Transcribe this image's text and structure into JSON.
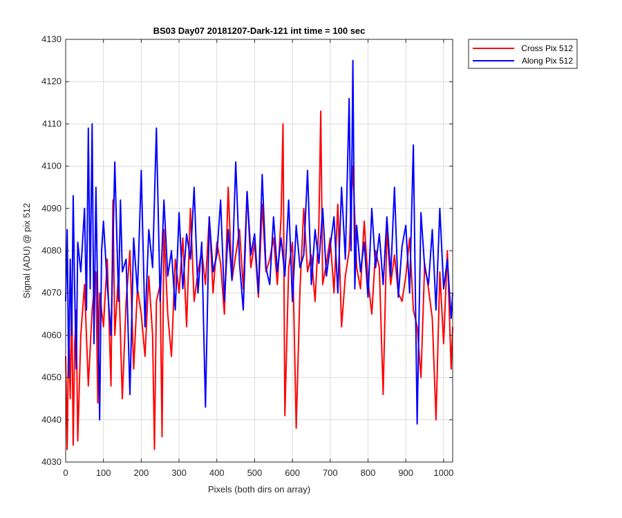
{
  "chart_data": {
    "type": "line",
    "title": "BS03 Day07 20181207-Dark-121 int time = 100 sec",
    "xlabel": "Pixels (both dirs on array)",
    "ylabel": "Signal (ADU) @ pix 512",
    "xlim": [
      0,
      1024
    ],
    "ylim": [
      4030,
      4130
    ],
    "xticks": [
      0,
      100,
      200,
      300,
      400,
      500,
      600,
      700,
      800,
      900,
      1000
    ],
    "yticks": [
      4030,
      4040,
      4050,
      4060,
      4070,
      4080,
      4090,
      4100,
      4110,
      4120,
      4130
    ],
    "grid": true,
    "legend_position": "outside top-right",
    "series": [
      {
        "name": "Cross Pix 512",
        "color": "#ff0000",
        "x": [
          0,
          4,
          8,
          12,
          16,
          20,
          24,
          28,
          32,
          40,
          50,
          60,
          70,
          80,
          85,
          90,
          100,
          110,
          120,
          125,
          130,
          140,
          150,
          160,
          170,
          180,
          190,
          200,
          210,
          220,
          230,
          235,
          240,
          250,
          255,
          260,
          270,
          280,
          290,
          300,
          310,
          320,
          330,
          340,
          350,
          360,
          370,
          380,
          390,
          400,
          410,
          420,
          430,
          440,
          450,
          460,
          470,
          480,
          490,
          500,
          510,
          520,
          530,
          540,
          550,
          560,
          570,
          575,
          580,
          590,
          600,
          610,
          620,
          630,
          640,
          650,
          660,
          670,
          675,
          680,
          690,
          700,
          710,
          720,
          730,
          740,
          750,
          760,
          770,
          780,
          790,
          800,
          810,
          820,
          830,
          840,
          850,
          860,
          870,
          880,
          890,
          900,
          910,
          920,
          930,
          940,
          950,
          960,
          970,
          980,
          990,
          1000,
          1010,
          1020,
          1024
        ],
        "y": [
          4055,
          4033,
          4062,
          4045,
          4070,
          4034,
          4058,
          4066,
          4035,
          4060,
          4072,
          4048,
          4066,
          4075,
          4044,
          4070,
          4062,
          4078,
          4048,
          4092,
          4060,
          4075,
          4045,
          4068,
          4080,
          4052,
          4071,
          4065,
          4055,
          4074,
          4060,
          4033,
          4068,
          4072,
          4036,
          4085,
          4065,
          4055,
          4078,
          4070,
          4083,
          4062,
          4090,
          4068,
          4075,
          4080,
          4072,
          4088,
          4070,
          4082,
          4077,
          4065,
          4095,
          4073,
          4079,
          4085,
          4071,
          4094,
          4076,
          4082,
          4069,
          4091,
          4075,
          4078,
          4083,
          4072,
          4088,
          4110,
          4041,
          4076,
          4082,
          4038,
          4071,
          4090,
          4075,
          4079,
          4068,
          4086,
          4113,
          4072,
          4077,
          4083,
          4070,
          4091,
          4062,
          4074,
          4080,
          4100,
          4076,
          4071,
          4087,
          4073,
          4065,
          4080,
          4076,
          4046,
          4085,
          4072,
          4079,
          4070,
          4068,
          4074,
          4083,
          4066,
          4062,
          4050,
          4077,
          4071,
          4064,
          4040,
          4075,
          4058,
          4080,
          4052,
          4062
        ]
      },
      {
        "name": "Along Pix 512",
        "color": "#0000ff",
        "x": [
          0,
          4,
          8,
          12,
          16,
          20,
          24,
          28,
          32,
          40,
          50,
          55,
          60,
          65,
          70,
          75,
          80,
          90,
          95,
          100,
          110,
          120,
          130,
          140,
          145,
          150,
          160,
          170,
          180,
          190,
          200,
          210,
          220,
          230,
          240,
          250,
          260,
          270,
          280,
          290,
          300,
          310,
          320,
          330,
          340,
          350,
          360,
          370,
          380,
          390,
          400,
          410,
          420,
          430,
          440,
          450,
          460,
          470,
          480,
          490,
          500,
          510,
          520,
          530,
          540,
          550,
          560,
          570,
          580,
          590,
          600,
          610,
          620,
          630,
          640,
          650,
          660,
          670,
          680,
          690,
          700,
          710,
          720,
          730,
          740,
          750,
          755,
          760,
          765,
          770,
          780,
          790,
          800,
          810,
          820,
          830,
          840,
          850,
          860,
          870,
          880,
          890,
          900,
          910,
          920,
          930,
          940,
          950,
          960,
          970,
          980,
          990,
          1000,
          1010,
          1020,
          1024
        ],
        "y": [
          4068,
          4085,
          4050,
          4078,
          4060,
          4093,
          4070,
          4052,
          4082,
          4075,
          4090,
          4066,
          4109,
          4071,
          4110,
          4058,
          4095,
          4040,
          4080,
          4087,
          4072,
          4060,
          4101,
          4068,
          4092,
          4075,
          4078,
          4046,
          4083,
          4070,
          4099,
          4062,
          4085,
          4076,
          4109,
          4068,
          4092,
          4074,
          4080,
          4066,
          4089,
          4071,
          4084,
          4078,
          4095,
          4070,
          4082,
          4043,
          4088,
          4075,
          4079,
          4092,
          4068,
          4085,
          4073,
          4101,
          4077,
          4066,
          4094,
          4079,
          4084,
          4070,
          4098,
          4076,
          4072,
          4088,
          4075,
          4083,
          4074,
          4092,
          4068,
          4086,
          4076,
          4079,
          4099,
          4072,
          4085,
          4077,
          4090,
          4074,
          4081,
          4088,
          4070,
          4095,
          4078,
          4116,
          4080,
          4125,
          4071,
          4086,
          4075,
          4082,
          4069,
          4090,
          4076,
          4084,
          4072,
          4088,
          4074,
          4095,
          4069,
          4081,
          4086,
          4070,
          4105,
          4039,
          4089,
          4076,
          4072,
          4085,
          4066,
          4090,
          4071,
          4078,
          4064,
          4070
        ]
      }
    ]
  }
}
